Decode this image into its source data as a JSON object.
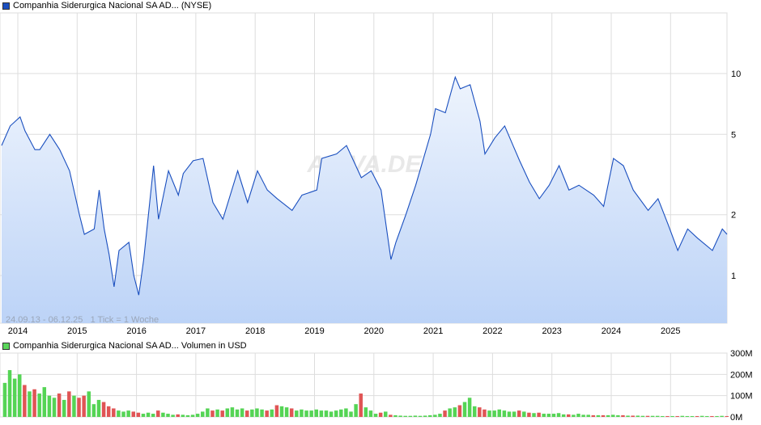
{
  "price_legend": {
    "label": "Companhia Siderurgica Nacional SA AD... (NYSE)",
    "color": "#1a4fbf"
  },
  "volume_legend": {
    "label": "Companhia Siderurgica Nacional SA AD... Volumen in USD",
    "color": "#5ad65a"
  },
  "range_note": "24.09.13 - 06.12.25   1 Tick = 1 Woche",
  "watermark": "ARIVA.DE",
  "colors": {
    "line": "#1a4fbf",
    "fill_top": "#eef4fd",
    "fill_bottom": "#bcd3f7",
    "vol_up": "#55d455",
    "vol_down": "#e05555",
    "grid": "#dddddd"
  },
  "chart_data": [
    {
      "type": "area",
      "scale": "log",
      "x_ticks": [
        "2014",
        "2015",
        "2016",
        "2017",
        "2018",
        "2019",
        "2020",
        "2021",
        "2022",
        "2023",
        "2024",
        "2025"
      ],
      "y_ticks": [
        1,
        2,
        5,
        10
      ],
      "ylim": [
        0.53,
        18
      ],
      "xlim": [
        "2013-09-24",
        "2025-12-06"
      ],
      "grid": true,
      "dates": [
        "2013-09",
        "2013-11",
        "2014-01",
        "2014-02",
        "2014-04",
        "2014-05",
        "2014-07",
        "2014-09",
        "2014-11",
        "2015-01",
        "2015-02",
        "2015-04",
        "2015-05",
        "2015-06",
        "2015-07",
        "2015-08",
        "2015-09",
        "2015-11",
        "2015-12",
        "2016-01",
        "2016-02",
        "2016-04",
        "2016-05",
        "2016-07",
        "2016-09",
        "2016-10",
        "2016-12",
        "2017-02",
        "2017-04",
        "2017-06",
        "2017-09",
        "2017-11",
        "2018-01",
        "2018-03",
        "2018-05",
        "2018-08",
        "2018-10",
        "2019-01",
        "2019-02",
        "2019-05",
        "2019-07",
        "2019-10",
        "2019-12",
        "2020-02",
        "2020-04",
        "2020-05",
        "2020-07",
        "2020-09",
        "2020-12",
        "2021-01",
        "2021-03",
        "2021-05",
        "2021-06",
        "2021-08",
        "2021-10",
        "2021-11",
        "2022-01",
        "2022-03",
        "2022-06",
        "2022-08",
        "2022-10",
        "2022-12",
        "2023-02",
        "2023-04",
        "2023-06",
        "2023-09",
        "2023-11",
        "2024-01",
        "2024-03",
        "2024-05",
        "2024-08",
        "2024-10",
        "2024-12",
        "2025-02",
        "2025-04",
        "2025-06",
        "2025-09",
        "2025-11",
        "2025-12"
      ],
      "values": [
        4.4,
        5.5,
        6.1,
        5.2,
        4.2,
        4.2,
        5.0,
        4.2,
        3.3,
        2.0,
        1.6,
        1.7,
        2.65,
        1.7,
        1.27,
        0.88,
        1.33,
        1.46,
        1.0,
        0.8,
        1.2,
        3.5,
        1.9,
        3.3,
        2.5,
        3.2,
        3.7,
        3.8,
        2.3,
        1.9,
        3.3,
        2.3,
        3.3,
        2.65,
        2.4,
        2.1,
        2.5,
        2.65,
        3.8,
        4.0,
        4.4,
        3.05,
        3.3,
        2.65,
        1.2,
        1.46,
        2.0,
        2.8,
        5.0,
        6.7,
        6.4,
        9.6,
        8.4,
        8.8,
        5.8,
        4.0,
        4.8,
        5.5,
        3.7,
        2.9,
        2.4,
        2.8,
        3.5,
        2.65,
        2.8,
        2.5,
        2.2,
        3.8,
        3.5,
        2.65,
        2.1,
        2.4,
        1.8,
        1.33,
        1.7,
        1.53,
        1.33,
        1.7,
        1.6
      ]
    },
    {
      "type": "bar",
      "unit": "M USD",
      "y_ticks": [
        "0M",
        "100M",
        "200M",
        "300M"
      ],
      "ylim": [
        0,
        300
      ],
      "start_month": "2013-10",
      "values": [
        160,
        220,
        180,
        200,
        150,
        120,
        130,
        110,
        140,
        100,
        90,
        110,
        80,
        120,
        100,
        90,
        100,
        120,
        60,
        80,
        70,
        50,
        40,
        30,
        25,
        30,
        25,
        20,
        15,
        20,
        15,
        30,
        20,
        15,
        10,
        12,
        10,
        8,
        10,
        15,
        25,
        40,
        30,
        35,
        30,
        40,
        45,
        35,
        40,
        30,
        35,
        40,
        35,
        30,
        35,
        55,
        50,
        45,
        40,
        30,
        35,
        30,
        30,
        35,
        30,
        30,
        25,
        30,
        35,
        40,
        25,
        60,
        110,
        45,
        30,
        15,
        20,
        25,
        10,
        8,
        6,
        5,
        5,
        6,
        5,
        6,
        8,
        10,
        15,
        30,
        40,
        45,
        55,
        70,
        90,
        50,
        45,
        35,
        30,
        30,
        35,
        30,
        25,
        25,
        30,
        25,
        20,
        18,
        20,
        15,
        15,
        15,
        18,
        12,
        12,
        10,
        15,
        10,
        10,
        8,
        8,
        8,
        8,
        10,
        8,
        8,
        6,
        6,
        6,
        5,
        5,
        5,
        5,
        4,
        4,
        4,
        4,
        5,
        4,
        4,
        4,
        5,
        4,
        4,
        4,
        5,
        4
      ]
    }
  ]
}
